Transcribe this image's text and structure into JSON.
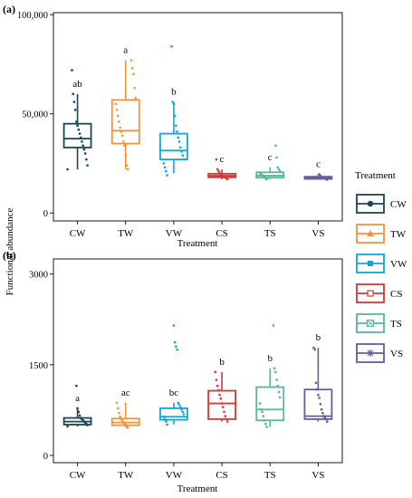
{
  "figure": {
    "ylabel": "Functional  abundance",
    "legend_title": "Treatment",
    "legend_position": "right",
    "legend_items": [
      "CW",
      "TW",
      "VW",
      "CS",
      "TS",
      "VS"
    ],
    "legend_markers": [
      "circle",
      "triangle",
      "square",
      "square-outline",
      "boxed-x",
      "asterisk"
    ]
  },
  "colors": {
    "CW": "#1e4650",
    "TW": "#f4933a",
    "VW": "#13a7d0",
    "CS": "#cd3b3a",
    "TS": "#58b59b",
    "VS": "#6a5a9e"
  },
  "chart_data": [
    {
      "type": "box",
      "panel_label": "(a)",
      "title": "",
      "xlabel": "Treatment",
      "ylabel": "Functional  abundance",
      "categories": [
        "CW",
        "TW",
        "VW",
        "CS",
        "TS",
        "VS"
      ],
      "ylim": [
        -4000,
        101000
      ],
      "yticks": [
        0,
        50000,
        100000
      ],
      "ytick_labels": [
        "0",
        "50,000",
        "100,000"
      ],
      "grid": false,
      "boxes": [
        {
          "name": "CW",
          "q1": 33000,
          "median": 37500,
          "q3": 45000,
          "whisker_low": 22000,
          "whisker_high": 60000,
          "sig": "ab"
        },
        {
          "name": "TW",
          "q1": 35000,
          "median": 41500,
          "q3": 57000,
          "whisker_low": 22000,
          "whisker_high": 77000,
          "sig": "a"
        },
        {
          "name": "VW",
          "q1": 27000,
          "median": 31500,
          "q3": 40000,
          "whisker_low": 20000,
          "whisker_high": 56000,
          "sig": "b"
        },
        {
          "name": "CS",
          "q1": 18000,
          "median": 18800,
          "q3": 19800,
          "whisker_low": 17000,
          "whisker_high": 22000,
          "sig": "c"
        },
        {
          "name": "TS",
          "q1": 17800,
          "median": 18800,
          "q3": 20500,
          "whisker_low": 17000,
          "whisker_high": 23000,
          "sig": "c"
        },
        {
          "name": "VS",
          "q1": 17200,
          "median": 17800,
          "q3": 18300,
          "whisker_low": 16800,
          "whisker_high": 19500,
          "sig": "c"
        }
      ],
      "points": {
        "CW": [
          22000,
          24000,
          27000,
          30000,
          32000,
          34000,
          36000,
          38000,
          40000,
          42000,
          44000,
          46000,
          52000,
          56000,
          60000,
          72000
        ],
        "TW": [
          22000,
          24000,
          29000,
          34000,
          36000,
          39000,
          41000,
          43000,
          46000,
          49000,
          52000,
          55000,
          58000,
          63000,
          70000,
          73000,
          77000
        ],
        "VW": [
          19000,
          21000,
          23000,
          25000,
          27000,
          29000,
          31000,
          33000,
          36000,
          38000,
          41000,
          44000,
          49000,
          55000,
          56000,
          84000
        ],
        "CS": [
          17000,
          17500,
          18000,
          18300,
          18600,
          19000,
          19400,
          20000,
          21000,
          22000,
          27000
        ],
        "TS": [
          17000,
          17500,
          18000,
          18500,
          19000,
          19500,
          20000,
          21000,
          22000,
          23000,
          28000,
          34000
        ],
        "VS": [
          16800,
          17200,
          17500,
          17800,
          18000,
          18300,
          18700,
          19500
        ]
      }
    },
    {
      "type": "box",
      "panel_label": "(b)",
      "title": "",
      "xlabel": "Treatment",
      "ylabel": "",
      "categories": [
        "CW",
        "TW",
        "VW",
        "CS",
        "TS",
        "VS"
      ],
      "ylim": [
        -120,
        3250
      ],
      "yticks": [
        0,
        1500,
        3000
      ],
      "ytick_labels": [
        "0",
        "1500",
        "3000"
      ],
      "grid": false,
      "boxes": [
        {
          "name": "CW",
          "q1": 510,
          "median": 560,
          "q3": 620,
          "whisker_low": 480,
          "whisker_high": 780,
          "sig": "a"
        },
        {
          "name": "TW",
          "q1": 500,
          "median": 545,
          "q3": 610,
          "whisker_low": 460,
          "whisker_high": 870,
          "sig": "ac"
        },
        {
          "name": "VW",
          "q1": 590,
          "median": 640,
          "q3": 780,
          "whisker_low": 510,
          "whisker_high": 870,
          "sig": "bc"
        },
        {
          "name": "CS",
          "q1": 600,
          "median": 860,
          "q3": 1070,
          "whisker_low": 560,
          "whisker_high": 1380,
          "sig": "b"
        },
        {
          "name": "TS",
          "q1": 580,
          "median": 760,
          "q3": 1130,
          "whisker_low": 470,
          "whisker_high": 1440,
          "sig": "b"
        },
        {
          "name": "VS",
          "q1": 600,
          "median": 650,
          "q3": 1090,
          "whisker_low": 560,
          "whisker_high": 1780,
          "sig": "b"
        }
      ],
      "points": {
        "CW": [
          480,
          500,
          520,
          540,
          560,
          580,
          600,
          620,
          660,
          720,
          780,
          1150
        ],
        "TW": [
          460,
          490,
          510,
          530,
          550,
          570,
          600,
          640,
          700,
          780,
          870
        ],
        "VW": [
          510,
          560,
          600,
          640,
          680,
          720,
          760,
          800,
          840,
          870,
          1750,
          1800,
          1870,
          2150
        ],
        "CS": [
          560,
          600,
          650,
          720,
          800,
          860,
          940,
          1000,
          1080,
          1150,
          1250,
          1380
        ],
        "TS": [
          470,
          520,
          580,
          650,
          720,
          760,
          860,
          960,
          1050,
          1150,
          1250,
          1380,
          1440,
          2150
        ],
        "VS": [
          560,
          600,
          620,
          650,
          700,
          760,
          850,
          950,
          1000,
          1090,
          1200,
          1750,
          1780
        ]
      }
    }
  ]
}
